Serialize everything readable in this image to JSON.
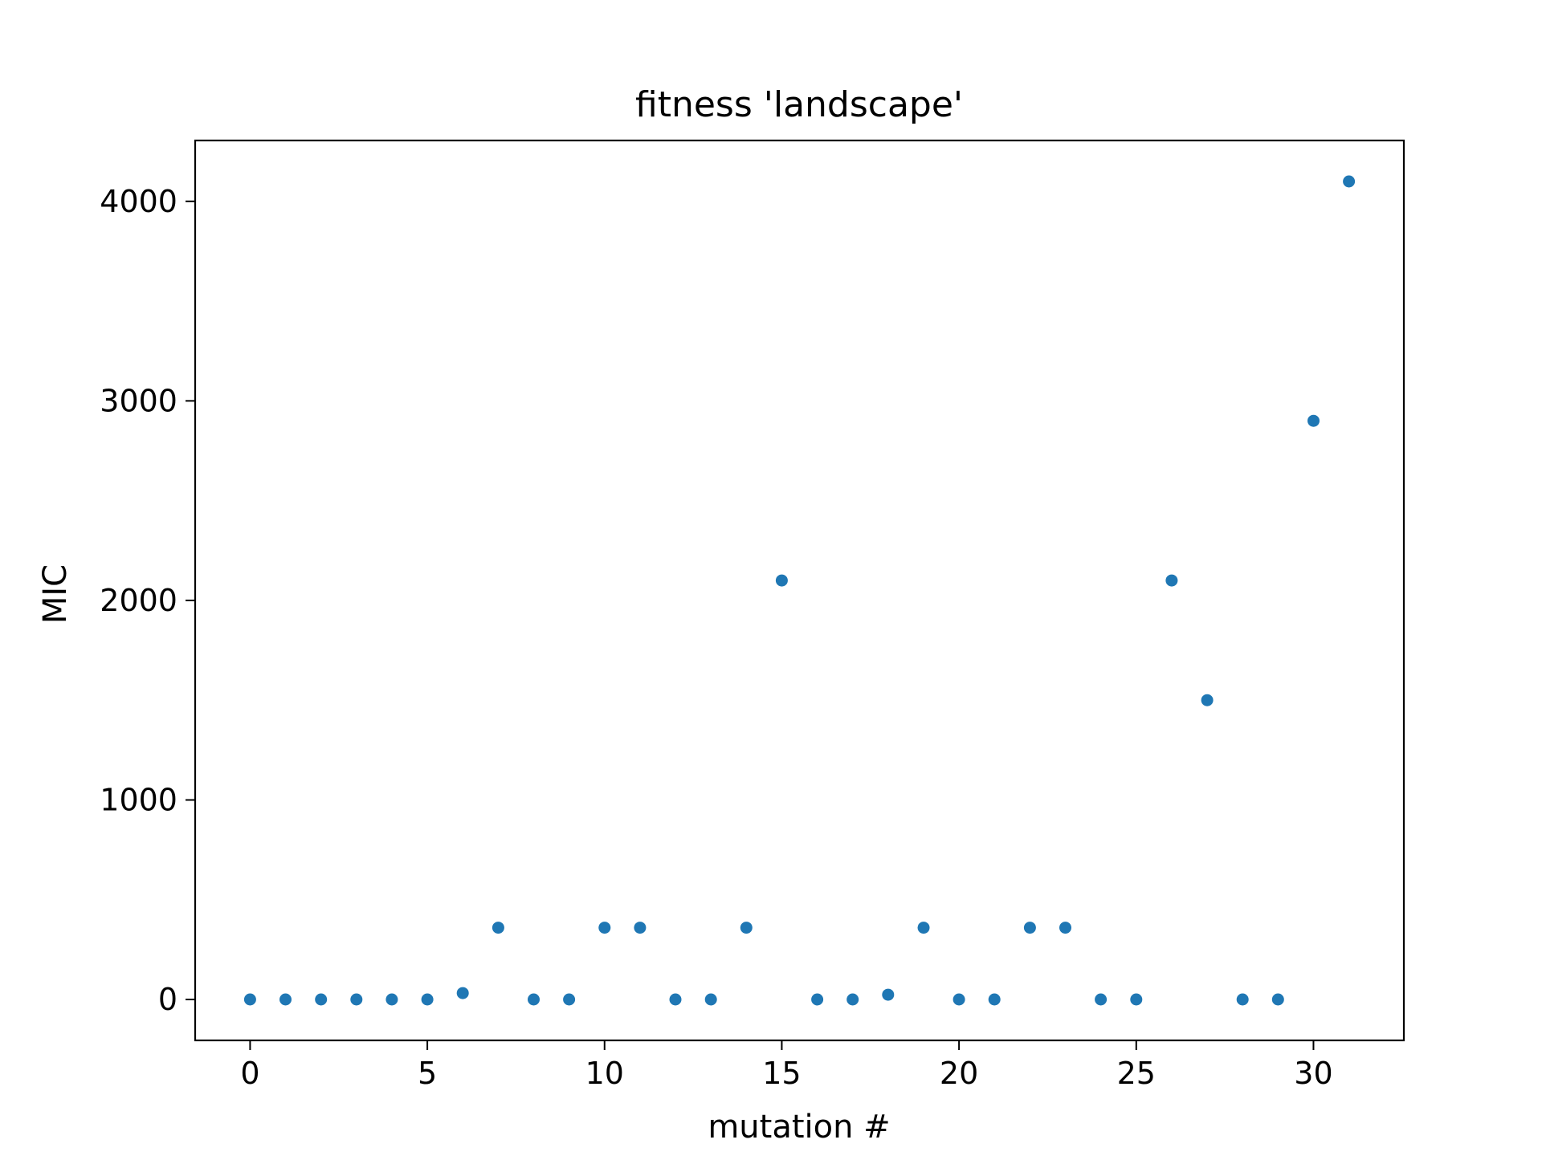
{
  "chart_data": {
    "type": "scatter",
    "title": "fitness 'landscape'",
    "xlabel": "mutation #",
    "ylabel": "MIC",
    "xlim": [
      -1.55,
      32.55
    ],
    "ylim": [
      -205,
      4305
    ],
    "xticks": [
      0,
      5,
      10,
      15,
      20,
      25,
      30
    ],
    "yticks": [
      0,
      1000,
      2000,
      3000,
      4000
    ],
    "xtick_labels": [
      "0",
      "5",
      "10",
      "15",
      "20",
      "25",
      "30"
    ],
    "ytick_labels": [
      "0",
      "1000",
      "2000",
      "3000",
      "4000"
    ],
    "grid": false,
    "marker_color": "#1f77b4",
    "series": [
      {
        "x": [
          0,
          1,
          2,
          3,
          4,
          5,
          6,
          7,
          8,
          9,
          10,
          11,
          12,
          13,
          14,
          15,
          16,
          17,
          18,
          19,
          20,
          21,
          22,
          23,
          24,
          25,
          26,
          27,
          28,
          29,
          30,
          31
        ],
        "y": [
          0,
          0,
          0,
          0,
          0,
          0,
          32,
          360,
          0,
          0,
          360,
          360,
          0,
          0,
          360,
          2100,
          0,
          0,
          24,
          360,
          0,
          0,
          360,
          360,
          0,
          0,
          2100,
          1500,
          0,
          0,
          2900,
          4100
        ]
      }
    ]
  }
}
